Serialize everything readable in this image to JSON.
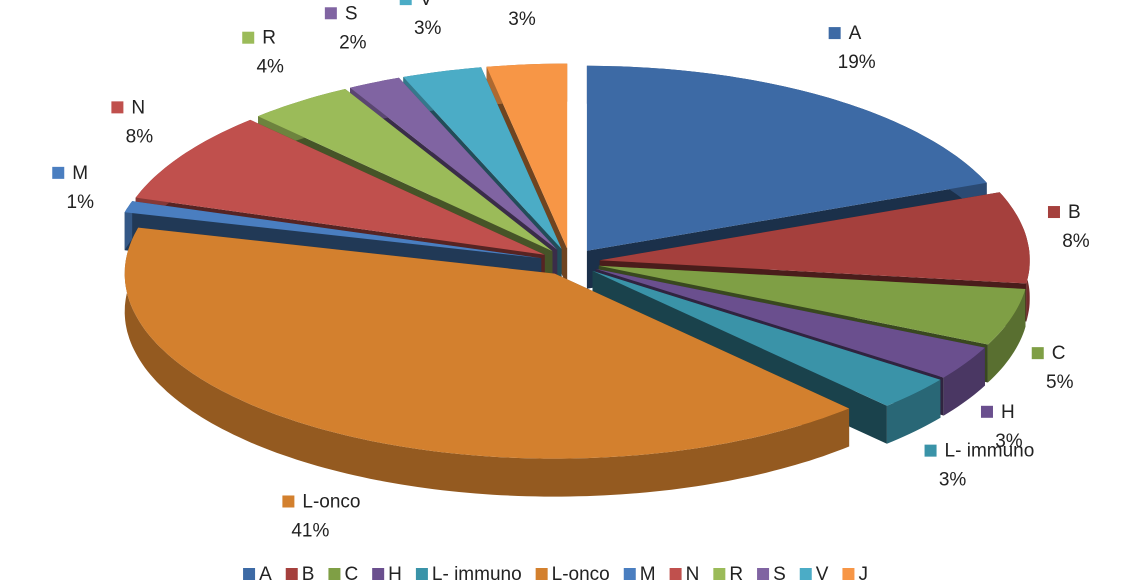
{
  "chart_data": {
    "type": "pie3d",
    "categories": [
      "A",
      "B",
      "C",
      "H",
      "L- immuno",
      "L-onco",
      "M",
      "N",
      "R",
      "S",
      "V",
      "J"
    ],
    "values": [
      19,
      8,
      5,
      3,
      3,
      41,
      1,
      8,
      4,
      2,
      3,
      3
    ],
    "value_labels": [
      "19%",
      "8%",
      "5%",
      "3%",
      "3%",
      "41%",
      "1%",
      "8%",
      "4%",
      "2%",
      "3%",
      "3%"
    ],
    "colors": [
      "#3d6aa5",
      "#a5403d",
      "#7f9f45",
      "#6a4f8e",
      "#3a93a8",
      "#d3802e",
      "#4a7ec0",
      "#c0504d",
      "#9bbb59",
      "#8064a2",
      "#4bacc6",
      "#f79646"
    ],
    "legend": "bottom"
  }
}
